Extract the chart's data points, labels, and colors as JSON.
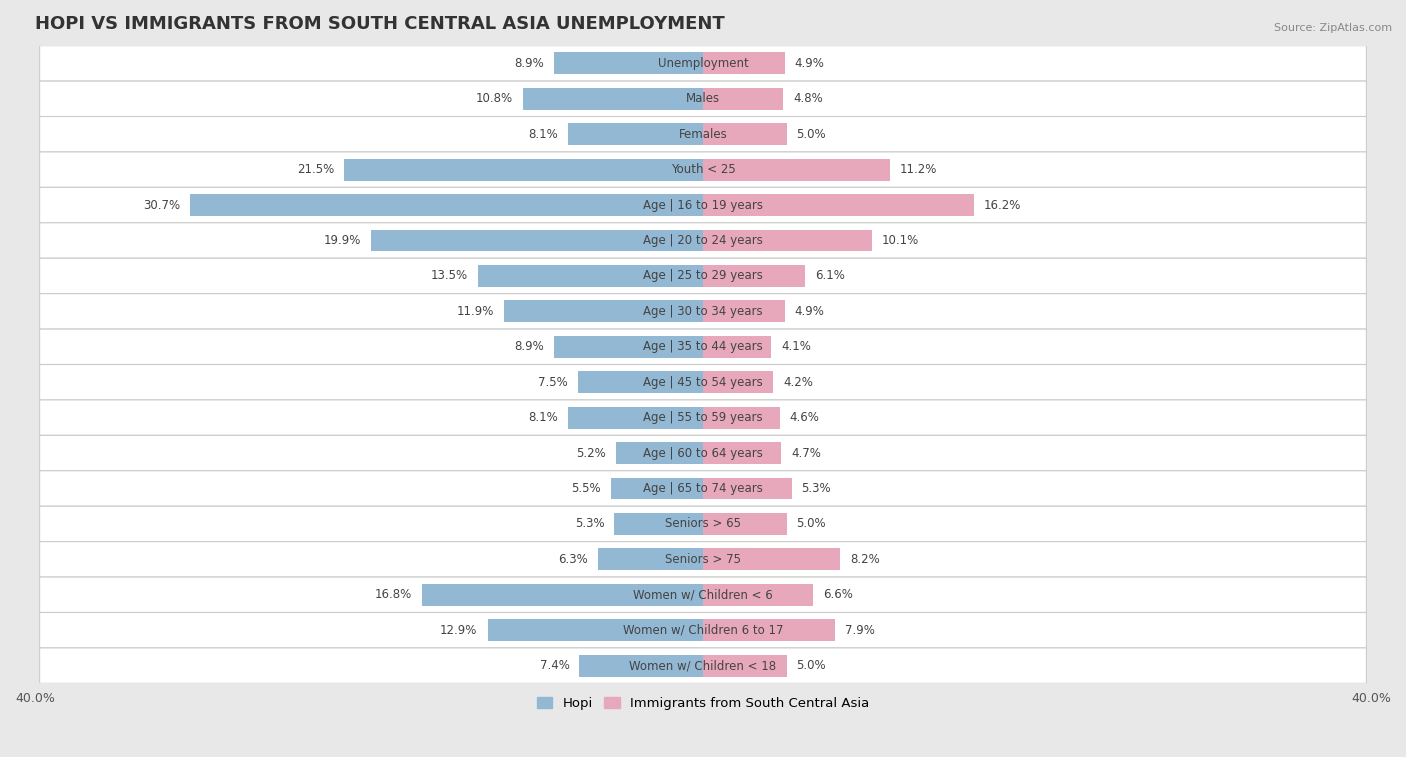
{
  "title": "HOPI VS IMMIGRANTS FROM SOUTH CENTRAL ASIA UNEMPLOYMENT",
  "source": "Source: ZipAtlas.com",
  "categories": [
    "Unemployment",
    "Males",
    "Females",
    "Youth < 25",
    "Age | 16 to 19 years",
    "Age | 20 to 24 years",
    "Age | 25 to 29 years",
    "Age | 30 to 34 years",
    "Age | 35 to 44 years",
    "Age | 45 to 54 years",
    "Age | 55 to 59 years",
    "Age | 60 to 64 years",
    "Age | 65 to 74 years",
    "Seniors > 65",
    "Seniors > 75",
    "Women w/ Children < 6",
    "Women w/ Children 6 to 17",
    "Women w/ Children < 18"
  ],
  "hopi_values": [
    8.9,
    10.8,
    8.1,
    21.5,
    30.7,
    19.9,
    13.5,
    11.9,
    8.9,
    7.5,
    8.1,
    5.2,
    5.5,
    5.3,
    6.3,
    16.8,
    12.9,
    7.4
  ],
  "immigrant_values": [
    4.9,
    4.8,
    5.0,
    11.2,
    16.2,
    10.1,
    6.1,
    4.9,
    4.1,
    4.2,
    4.6,
    4.7,
    5.3,
    5.0,
    8.2,
    6.6,
    7.9,
    5.0
  ],
  "hopi_color": "#92b8d4",
  "immigrant_color": "#e8a8bc",
  "hopi_label": "Hopi",
  "immigrant_label": "Immigrants from South Central Asia",
  "xlim": 40.0,
  "row_bg_color": "#ffffff",
  "outer_bg_color": "#e8e8e8",
  "row_border_color": "#cccccc",
  "title_fontsize": 13,
  "label_fontsize": 8.5,
  "value_fontsize": 8.5,
  "tick_fontsize": 9,
  "bar_height": 0.62
}
